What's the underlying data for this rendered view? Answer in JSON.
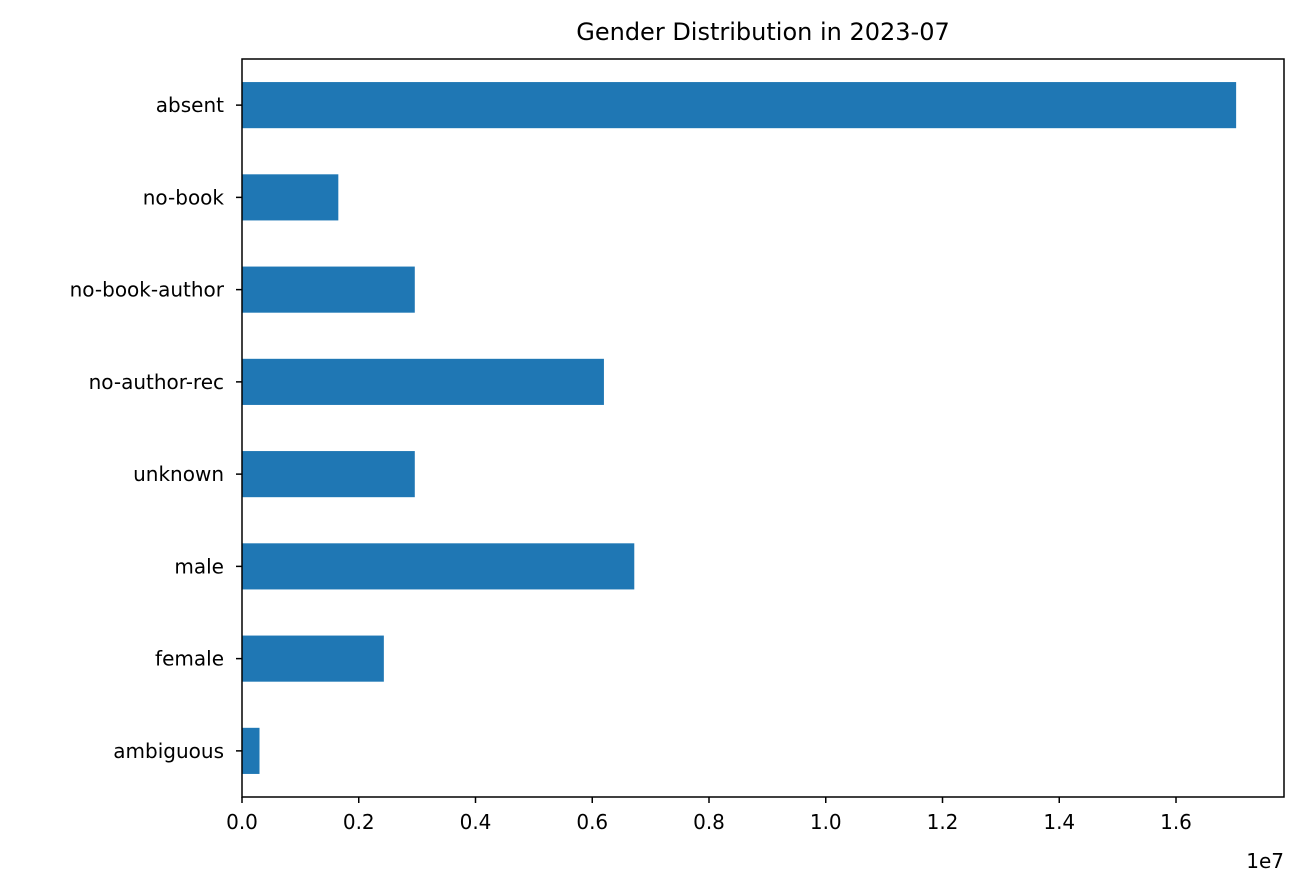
{
  "chart_data": {
    "type": "bar",
    "orientation": "horizontal",
    "title": "Gender Distribution in 2023-07",
    "xlabel": "",
    "ylabel": "",
    "categories": [
      "absent",
      "no-book",
      "no-book-author",
      "no-author-rec",
      "unknown",
      "male",
      "female",
      "ambiguous"
    ],
    "values": [
      17030000,
      1650000,
      2960000,
      6200000,
      2960000,
      6720000,
      2430000,
      300000
    ],
    "xlim": [
      0,
      17850000
    ],
    "x_tick_values": [
      0,
      2000000,
      4000000,
      6000000,
      8000000,
      10000000,
      12000000,
      14000000,
      16000000
    ],
    "x_tick_labels": [
      "0.0",
      "0.2",
      "0.4",
      "0.6",
      "0.8",
      "1.0",
      "1.2",
      "1.4",
      "1.6"
    ],
    "x_offset_label": "1e7",
    "bar_color": "#1f77b4",
    "grid": false,
    "legend": false
  }
}
